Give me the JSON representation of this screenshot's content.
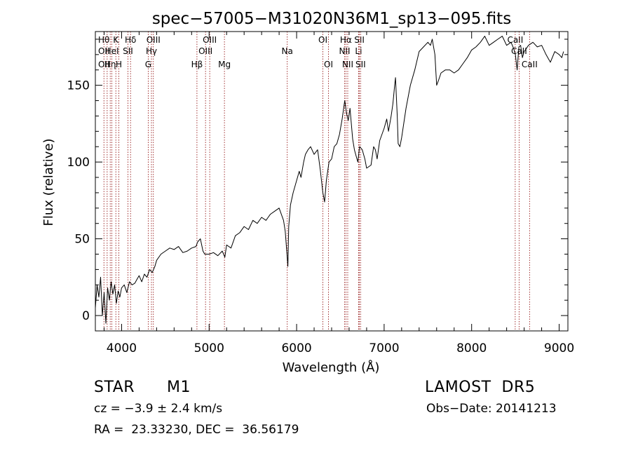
{
  "chart_data": {
    "type": "line",
    "title": "spec−57005−M31020N36M1_sp13−095.fits",
    "xlabel": "Wavelength (Å)",
    "ylabel": "Flux (relative)",
    "xlim": [
      3700,
      9100
    ],
    "ylim": [
      -10,
      185
    ],
    "xticks": [
      4000,
      5000,
      6000,
      7000,
      8000,
      9000
    ],
    "yticks": [
      0,
      50,
      100,
      150
    ],
    "grid": false,
    "line_color": "#000000",
    "marker_color": "#8b0000",
    "series": [
      {
        "x": [
          3700,
          3720,
          3740,
          3760,
          3780,
          3800,
          3820,
          3840,
          3860,
          3880,
          3900,
          3920,
          3940,
          3960,
          3980,
          4000,
          4030,
          4060,
          4090,
          4120,
          4150,
          4180,
          4200,
          4230,
          4260,
          4290,
          4320,
          4350,
          4380,
          4400,
          4450,
          4500,
          4550,
          4600,
          4650,
          4700,
          4750,
          4800,
          4850,
          4870,
          4900,
          4930,
          4950,
          5000,
          5050,
          5100,
          5150,
          5180,
          5200,
          5250,
          5300,
          5350,
          5400,
          5450,
          5500,
          5550,
          5600,
          5650,
          5700,
          5750,
          5800,
          5850,
          5870,
          5890,
          5900,
          5910,
          5930,
          5960,
          6000,
          6030,
          6050,
          6080,
          6100,
          6130,
          6160,
          6200,
          6240,
          6270,
          6300,
          6320,
          6340,
          6370,
          6400,
          6430,
          6460,
          6490,
          6520,
          6550,
          6570,
          6590,
          6610,
          6640,
          6660,
          6680,
          6700,
          6720,
          6750,
          6780,
          6800,
          6850,
          6880,
          6900,
          6920,
          6950,
          7000,
          7030,
          7050,
          7080,
          7100,
          7120,
          7130,
          7150,
          7160,
          7180,
          7200,
          7250,
          7300,
          7350,
          7400,
          7450,
          7500,
          7530,
          7550,
          7580,
          7600,
          7620,
          7650,
          7700,
          7750,
          7800,
          7850,
          7900,
          7950,
          8000,
          8050,
          8100,
          8150,
          8200,
          8250,
          8300,
          8350,
          8400,
          8450,
          8480,
          8500,
          8520,
          8540,
          8560,
          8580,
          8600,
          8650,
          8700,
          8750,
          8800,
          8850,
          8900,
          8950,
          9000,
          9030,
          9050
        ],
        "y": [
          5,
          20,
          12,
          25,
          0,
          15,
          -5,
          18,
          10,
          22,
          14,
          20,
          8,
          16,
          12,
          18,
          20,
          15,
          22,
          20,
          21,
          24,
          26,
          22,
          27,
          25,
          30,
          28,
          32,
          36,
          40,
          42,
          44,
          43,
          45,
          41,
          42,
          44,
          45,
          48,
          50,
          42,
          40,
          40,
          41,
          39,
          42,
          38,
          46,
          44,
          52,
          54,
          58,
          56,
          62,
          60,
          64,
          62,
          66,
          68,
          70,
          62,
          55,
          40,
          32,
          58,
          72,
          80,
          88,
          94,
          90,
          100,
          105,
          108,
          110,
          105,
          108,
          95,
          80,
          74,
          88,
          100,
          102,
          110,
          112,
          118,
          128,
          140,
          132,
          127,
          135,
          115,
          108,
          104,
          100,
          110,
          108,
          102,
          96,
          98,
          110,
          108,
          102,
          114,
          122,
          128,
          120,
          130,
          138,
          150,
          155,
          130,
          112,
          110,
          116,
          135,
          150,
          160,
          172,
          175,
          178,
          176,
          180,
          170,
          150,
          153,
          158,
          160,
          160,
          158,
          160,
          164,
          168,
          173,
          175,
          178,
          182,
          176,
          178,
          180,
          182,
          176,
          178,
          174,
          170,
          160,
          175,
          176,
          168,
          172,
          176,
          178,
          175,
          176,
          170,
          165,
          172,
          170,
          168,
          172
        ]
      }
    ],
    "lines": [
      {
        "x": 3798,
        "labels": [
          "Hθ",
          "OII",
          "OII"
        ]
      },
      {
        "x": 3835,
        "labels": []
      },
      {
        "x": 3870,
        "labels": [
          "",
          "",
          "Hη"
        ]
      },
      {
        "x": 3889,
        "labels": [
          "",
          "HeI",
          ""
        ]
      },
      {
        "x": 3934,
        "labels": [
          "K",
          "",
          ""
        ]
      },
      {
        "x": 3969,
        "labels": [
          "",
          "",
          "H"
        ]
      },
      {
        "x": 4072,
        "labels": [
          "",
          "SII",
          ""
        ]
      },
      {
        "x": 4102,
        "labels": [
          "Hδ",
          "",
          ""
        ]
      },
      {
        "x": 4304,
        "labels": [
          "",
          "",
          "G"
        ]
      },
      {
        "x": 4341,
        "labels": [
          "",
          "Hγ",
          ""
        ]
      },
      {
        "x": 4363,
        "labels": [
          "OIII",
          "",
          ""
        ]
      },
      {
        "x": 4861,
        "labels": [
          "",
          "",
          "Hβ"
        ]
      },
      {
        "x": 4959,
        "labels": [
          "",
          "OIII",
          ""
        ]
      },
      {
        "x": 5007,
        "labels": [
          "OIII",
          "",
          ""
        ]
      },
      {
        "x": 5175,
        "labels": [
          "",
          "",
          "Mg"
        ]
      },
      {
        "x": 5893,
        "labels": [
          "",
          "Na",
          ""
        ]
      },
      {
        "x": 6300,
        "labels": [
          "OI",
          "",
          ""
        ]
      },
      {
        "x": 6364,
        "labels": [
          "",
          "",
          "OI"
        ]
      },
      {
        "x": 6548,
        "labels": [
          "",
          "NII",
          ""
        ]
      },
      {
        "x": 6563,
        "labels": [
          "Hα",
          "",
          ""
        ]
      },
      {
        "x": 6584,
        "labels": [
          "",
          "",
          "NII"
        ]
      },
      {
        "x": 6708,
        "labels": [
          "",
          "Li",
          ""
        ]
      },
      {
        "x": 6717,
        "labels": [
          "SII",
          "",
          ""
        ]
      },
      {
        "x": 6731,
        "labels": [
          "",
          "",
          "SII"
        ]
      },
      {
        "x": 8498,
        "labels": [
          "CaII",
          "",
          ""
        ]
      },
      {
        "x": 8542,
        "labels": [
          "",
          "CaII",
          ""
        ]
      },
      {
        "x": 8662,
        "labels": [
          "",
          "",
          "CaII"
        ]
      }
    ]
  },
  "info": {
    "object_class": "STAR",
    "subclass": "M1",
    "survey": "LAMOST  DR5",
    "cz": "cz = −3.9 ± 2.4 km/s",
    "obs_date": "Obs−Date: 20141213",
    "coords": "RA =  23.33230, DEC =  36.56179"
  }
}
